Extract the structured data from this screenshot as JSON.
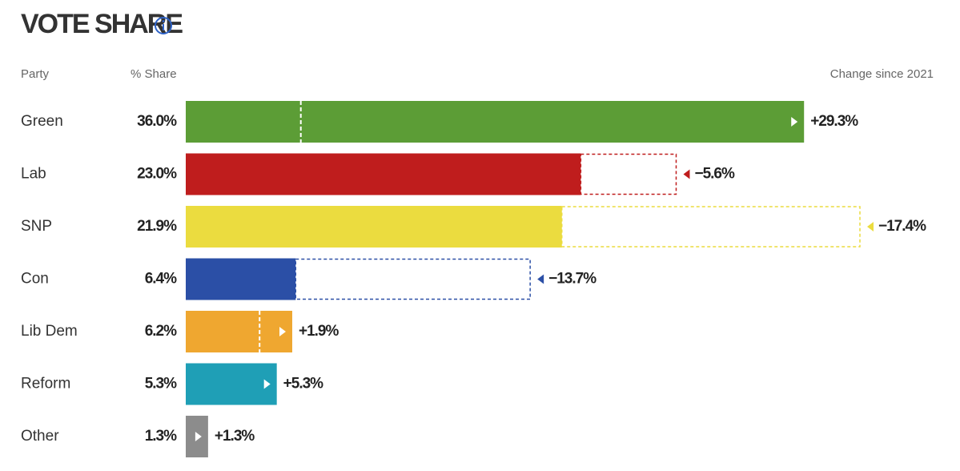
{
  "chart_data": {
    "type": "bar",
    "title": "VOTE SHARE",
    "headers": {
      "party": "Party",
      "share": "% Share",
      "change": "Change since 2021"
    },
    "categories": [
      "Green",
      "Lab",
      "SNP",
      "Con",
      "Lib Dem",
      "Reform",
      "Other"
    ],
    "values": [
      36.0,
      23.0,
      21.9,
      6.4,
      6.2,
      5.3,
      1.3
    ],
    "value_labels": [
      "36.0%",
      "23.0%",
      "21.9%",
      "6.4%",
      "6.2%",
      "5.3%",
      "1.3%"
    ],
    "changes": [
      29.3,
      -5.6,
      -17.4,
      -13.7,
      1.9,
      5.3,
      1.3
    ],
    "change_labels": [
      "+29.3%",
      "−5.6%",
      "−17.4%",
      "−13.7%",
      "+1.9%",
      "+5.3%",
      "+1.3%"
    ],
    "colors": [
      "#5c9d36",
      "#bf1d1d",
      "#ebdc3f",
      "#2b4fa6",
      "#efa730",
      "#1f9fb6",
      "#8c8c8c"
    ]
  }
}
